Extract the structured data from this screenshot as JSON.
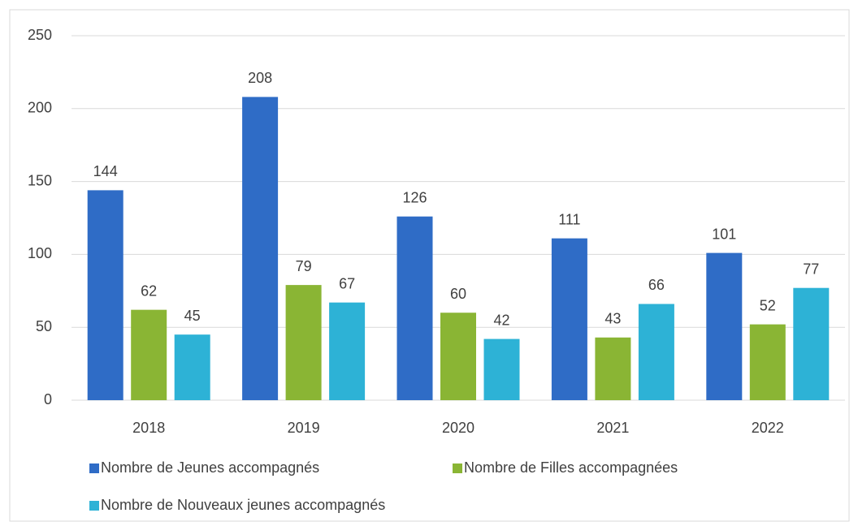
{
  "chart_data": {
    "type": "bar",
    "categories": [
      "2018",
      "2019",
      "2020",
      "2021",
      "2022"
    ],
    "series": [
      {
        "name": "Nombre de Jeunes accompagnés",
        "color": "#2f6cc6",
        "values": [
          144,
          208,
          126,
          111,
          101
        ]
      },
      {
        "name": "Nombre de Filles accompagnées",
        "color": "#8ab534",
        "values": [
          62,
          79,
          60,
          43,
          52
        ]
      },
      {
        "name": "Nombre de Nouveaux jeunes accompagnés",
        "color": "#2db2d6",
        "values": [
          45,
          67,
          42,
          66,
          77
        ]
      }
    ],
    "ylim": [
      0,
      250
    ],
    "yticks": [
      0,
      50,
      100,
      150,
      200,
      250
    ],
    "grid": true
  }
}
